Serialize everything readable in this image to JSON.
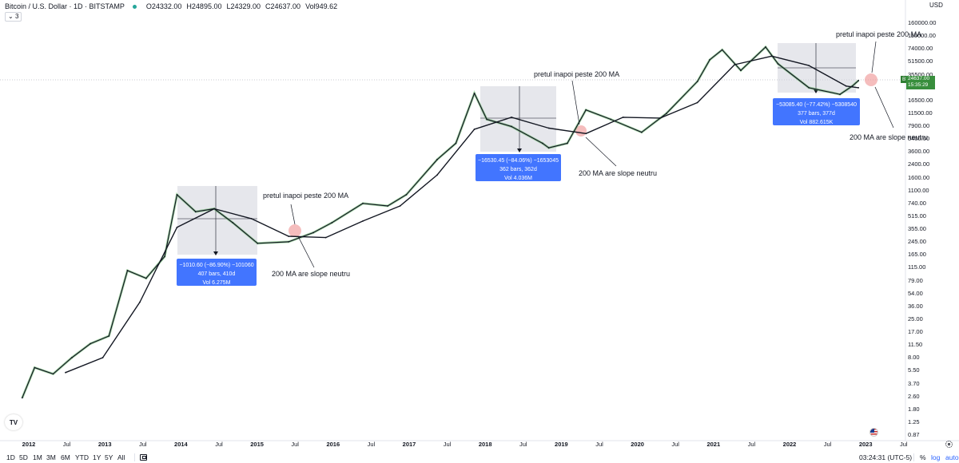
{
  "header": {
    "symbol": "Bitcoin / U.S. Dollar · 1D · BITSTAMP",
    "open": "O24332.00",
    "high": "H24895.00",
    "low": "L24329.00",
    "close": "C24637.00",
    "volume": "Vol949.62",
    "indicator_count": "3"
  },
  "price_axis": {
    "currency": "USD",
    "labels": [
      "160000.00",
      "110000.00",
      "74000.00",
      "51500.00",
      "35500.00",
      "24637.00",
      "16500.00",
      "11500.00",
      "7900.00",
      "5400.00",
      "3600.00",
      "2400.00",
      "1600.00",
      "1100.00",
      "740.00",
      "515.00",
      "355.00",
      "245.00",
      "165.00",
      "115.00",
      "79.00",
      "54.00",
      "36.00",
      "25.00",
      "17.00",
      "11.50",
      "8.00",
      "5.50",
      "3.70",
      "2.60",
      "1.80",
      "1.25",
      "0.87"
    ]
  },
  "time_axis": {
    "labels": [
      "2012",
      "Jul",
      "2013",
      "Jul",
      "2014",
      "Jul",
      "2015",
      "Jul",
      "2016",
      "Jul",
      "2017",
      "Jul",
      "2018",
      "Jul",
      "2019",
      "Jul",
      "2020",
      "Jul",
      "2021",
      "Jul",
      "2022",
      "Jul",
      "2023",
      "Jul"
    ],
    "years": [
      "2012",
      "2013",
      "2014",
      "2015",
      "2016",
      "2017",
      "2018",
      "2019",
      "2020",
      "2021",
      "2022",
      "2023"
    ]
  },
  "current_price": {
    "symbol_tag": "BTCUSD",
    "price": "24637.00",
    "countdown": "15:35:29"
  },
  "measurements": [
    {
      "line1": "−1010.60 (−86.90%) −101060",
      "line2": "407 bars, 410d",
      "line3": "Vol 6.275M"
    },
    {
      "line1": "−16530.45 (−84.06%) −1653045",
      "line2": "362 bars, 362d",
      "line3": "Vol 4.036M"
    },
    {
      "line1": "−53085.40 (−77.42%) −5308540",
      "line2": "377 bars, 377d",
      "line3": "Vol 882.615K"
    }
  ],
  "annotations": [
    {
      "text": "pretul inapoi peste 200 MA"
    },
    {
      "text": "200 MA are slope neutru"
    },
    {
      "text": "pretul inapoi peste 200 MA"
    },
    {
      "text": "200 MA are slope neutru"
    },
    {
      "text": "pretul inapoi peste 200 MA"
    },
    {
      "text": "200 MA are slope neutru"
    }
  ],
  "bottom_bar": {
    "ranges": [
      "1D",
      "5D",
      "1M",
      "3M",
      "6M",
      "YTD",
      "1Y",
      "5Y",
      "All"
    ],
    "clock": "03:24:31 (UTC-5)",
    "percent": "%",
    "log": "log",
    "auto": "auto"
  },
  "icons": [
    "tradingview-logo-icon",
    "calendar-icon",
    "us-flag-icon",
    "gear-icon"
  ],
  "colors": {
    "candle": "#131722",
    "ma_fast": "#66bb6a",
    "ma_200": "#131722",
    "measure_box": "#2962ff",
    "highlight": "#ef9a9a",
    "price_tag": "#388e3c"
  },
  "chart_data": {
    "type": "line",
    "yscale": "log",
    "xlim": [
      "2011-10",
      "2023-07"
    ],
    "ylim": [
      0.87,
      160000
    ],
    "series": [
      {
        "x": [
          "2011-11",
          "2012-01",
          "2012-04",
          "2012-07",
          "2012-10",
          "2013-01",
          "2013-04",
          "2013-07",
          "2013-10",
          "2013-12",
          "2014-03",
          "2014-06",
          "2014-09",
          "2015-01",
          "2015-06",
          "2015-10",
          "2016-01",
          "2016-06",
          "2016-10",
          "2017-01",
          "2017-06",
          "2017-09",
          "2017-12",
          "2018-02",
          "2018-06",
          "2018-11",
          "2018-12",
          "2019-03",
          "2019-06",
          "2019-10",
          "2020-03",
          "2020-07",
          "2020-12",
          "2021-02",
          "2021-04",
          "2021-07",
          "2021-11",
          "2022-01",
          "2022-06",
          "2022-11",
          "2023-01",
          "2023-02"
        ],
        "values": [
          2.5,
          6,
          5,
          8,
          12,
          15,
          100,
          80,
          150,
          900,
          550,
          600,
          400,
          220,
          230,
          300,
          400,
          700,
          650,
          900,
          2500,
          4000,
          17000,
          8000,
          6500,
          4000,
          3500,
          4000,
          10500,
          8000,
          5500,
          9500,
          24000,
          45000,
          60000,
          33000,
          65000,
          40000,
          20000,
          16500,
          21000,
          24637
        ]
      },
      {
        "x": [
          "2012-06",
          "2012-12",
          "2013-06",
          "2013-12",
          "2014-06",
          "2014-12",
          "2015-06",
          "2015-12",
          "2016-06",
          "2016-12",
          "2017-06",
          "2017-12",
          "2018-06",
          "2018-12",
          "2019-06",
          "2019-12",
          "2020-06",
          "2020-12",
          "2021-06",
          "2021-12",
          "2022-06",
          "2022-12",
          "2023-02"
        ],
        "values": [
          5.2,
          8,
          40,
          350,
          600,
          450,
          270,
          260,
          420,
          650,
          1600,
          6000,
          8500,
          6200,
          5300,
          8500,
          8300,
          13000,
          39000,
          50000,
          38000,
          21000,
          20000
        ]
      }
    ]
  }
}
